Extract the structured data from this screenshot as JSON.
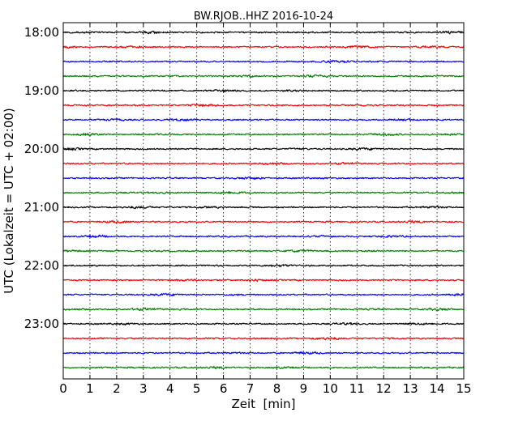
{
  "chart_data": {
    "type": "line",
    "title": "BW.RJOB..HHZ 2016-10-24",
    "xlabel": "Zeit  [min]",
    "ylabel": "UTC (Lokalzeit = UTC + 02:00)",
    "xlim": [
      0,
      15
    ],
    "x_ticks": [
      "0",
      "1",
      "2",
      "3",
      "4",
      "5",
      "6",
      "7",
      "8",
      "9",
      "10",
      "11",
      "12",
      "13",
      "14",
      "15"
    ],
    "y_ticks": [
      "18:00",
      "19:00",
      "20:00",
      "21:00",
      "22:00",
      "23:00"
    ],
    "traces_per_hour": 4,
    "trace_minutes": 15,
    "start_hour": 18,
    "end_hour": 24,
    "trace_colors": [
      "#000000",
      "#ff0000",
      "#0000ff",
      "#007f00"
    ],
    "grid": {
      "x": true,
      "style": "dotted"
    }
  }
}
